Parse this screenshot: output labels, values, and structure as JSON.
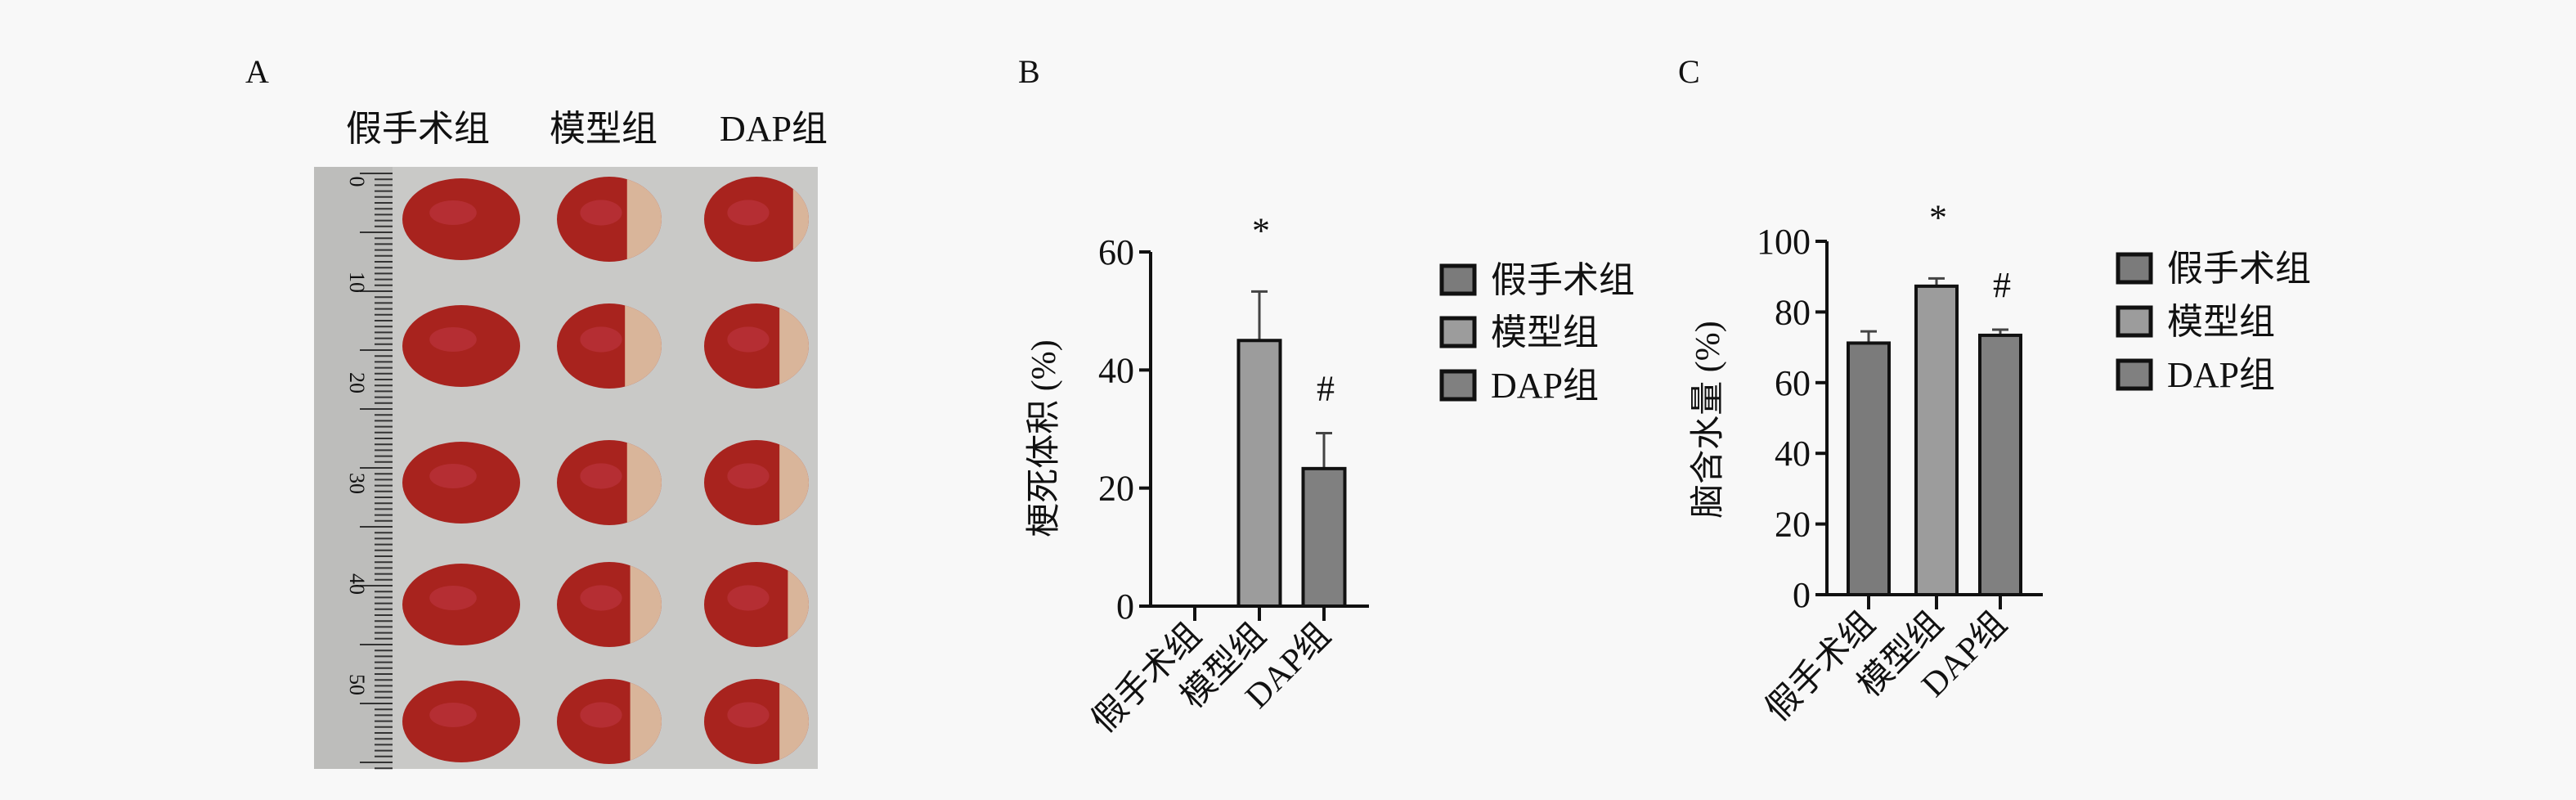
{
  "panel_labels": [
    "A",
    "B",
    "C"
  ],
  "panel_a": {
    "column_labels": [
      "假手术组",
      "模型组",
      "DAP组"
    ],
    "ruler_labels": [
      "0",
      "10",
      "20",
      "30",
      "40",
      "50"
    ],
    "colors": {
      "background": "#c9c9c7",
      "tissue_red": "#a8231e",
      "infarct_pale": "#d9b59a"
    }
  },
  "chart_data": [
    {
      "type": "bar",
      "panel": "B",
      "categories": [
        "假手术组",
        "模型组",
        "DAP组"
      ],
      "values": [
        0,
        45,
        23.3
      ],
      "errors": [
        0,
        8.3,
        6.0
      ],
      "annotations": [
        "",
        "*",
        "#"
      ],
      "ylabel": "梗死体积 (%)",
      "xlabel": "",
      "ylim": [
        0,
        60
      ],
      "yticks": [
        "0",
        "20",
        "40",
        "60"
      ],
      "legend": [
        "假手术组",
        "模型组",
        "DAP组"
      ],
      "legend_position": "right",
      "colors": [
        "#7b7b7b",
        "#9c9c9c",
        "#808080"
      ],
      "grid": false
    },
    {
      "type": "bar",
      "panel": "C",
      "categories": [
        "假手术组",
        "模型组",
        "DAP组"
      ],
      "values": [
        71.2,
        87.3,
        73.4
      ],
      "errors": [
        3.3,
        2.2,
        1.6
      ],
      "annotations": [
        "",
        "*",
        "#"
      ],
      "ylabel": "脑含水量 (%)",
      "xlabel": "",
      "ylim": [
        0,
        100
      ],
      "yticks": [
        "0",
        "20",
        "40",
        "60",
        "80",
        "100"
      ],
      "legend": [
        "假手术组",
        "模型组",
        "DAP组"
      ],
      "legend_position": "right",
      "colors": [
        "#7b7b7b",
        "#9c9c9c",
        "#808080"
      ],
      "grid": false
    }
  ]
}
